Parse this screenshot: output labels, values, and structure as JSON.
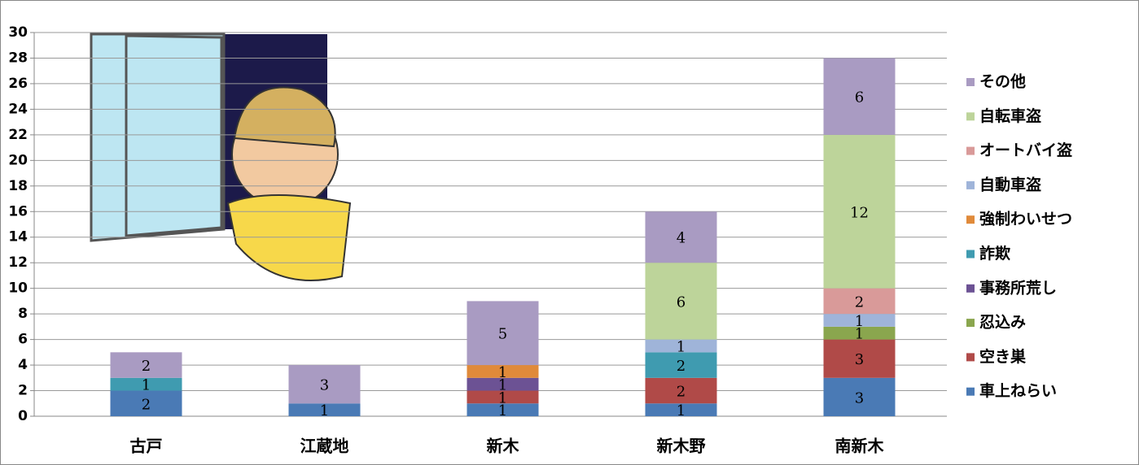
{
  "chart_data": {
    "type": "stacked_bar",
    "categories": [
      "古戸",
      "江蔵地",
      "新木",
      "新木野",
      "南新木"
    ],
    "series": [
      {
        "name": "車上ねらい",
        "color": "#4a7ab5",
        "values": [
          2,
          1,
          1,
          1,
          3
        ]
      },
      {
        "name": "空き巣",
        "color": "#b04a48",
        "values": [
          null,
          null,
          1,
          2,
          3
        ]
      },
      {
        "name": "忍込み",
        "color": "#8aa64e",
        "values": [
          null,
          null,
          null,
          null,
          1
        ]
      },
      {
        "name": "事務所荒し",
        "color": "#6c5294",
        "values": [
          null,
          null,
          1,
          null,
          null
        ]
      },
      {
        "name": "詐欺",
        "color": "#3f9bb0",
        "values": [
          1,
          null,
          null,
          2,
          null
        ]
      },
      {
        "name": "強制わいせつ",
        "color": "#e08a3a",
        "values": [
          null,
          null,
          1,
          null,
          null
        ]
      },
      {
        "name": "自動車盗",
        "color": "#9fb4d9",
        "values": [
          null,
          null,
          null,
          1,
          1
        ]
      },
      {
        "name": "オートバイ盗",
        "color": "#d99a99",
        "values": [
          null,
          null,
          null,
          null,
          2
        ]
      },
      {
        "name": "自転車盗",
        "color": "#bdd49a",
        "values": [
          null,
          null,
          null,
          6,
          12
        ]
      },
      {
        "name": "その他",
        "color": "#a99bc2",
        "values": [
          2,
          3,
          5,
          4,
          6
        ]
      }
    ],
    "ylim": [
      0,
      30
    ],
    "yticks": [
      0,
      2,
      4,
      6,
      8,
      10,
      12,
      14,
      16,
      18,
      20,
      22,
      24,
      26,
      28,
      30
    ],
    "grid": true,
    "legend": "right"
  }
}
